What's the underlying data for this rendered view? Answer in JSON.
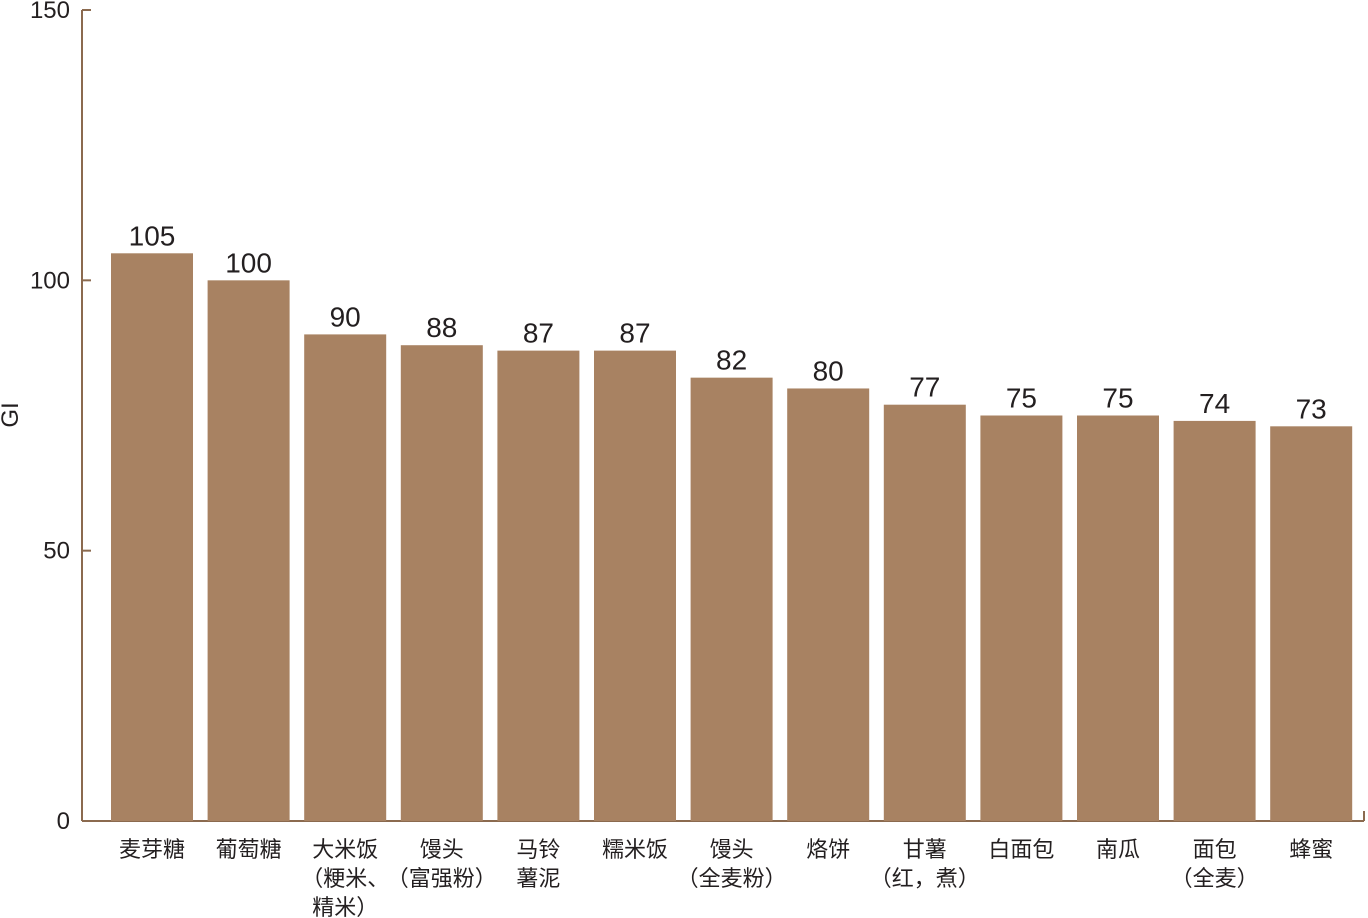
{
  "colors": {
    "bar": "#a88262",
    "axis": "#8b6a4f",
    "text": "#231f20"
  },
  "chart_data": {
    "type": "bar",
    "title": "",
    "xlabel": "",
    "ylabel": "GI",
    "ylim": [
      0,
      150
    ],
    "yticks": [
      0,
      50,
      100,
      150
    ],
    "grid": false,
    "legend": "none",
    "categories": [
      [
        "麦芽糖"
      ],
      [
        "葡萄糖"
      ],
      [
        "大米饭",
        "（粳米、",
        "精米）"
      ],
      [
        "馒头",
        "（富强粉）"
      ],
      [
        "马铃",
        "薯泥"
      ],
      [
        "糯米饭"
      ],
      [
        "馒头",
        "（全麦粉）"
      ],
      [
        "烙饼"
      ],
      [
        "甘薯",
        "（红，煮）"
      ],
      [
        "白面包"
      ],
      [
        "南瓜"
      ],
      [
        "面包",
        "（全麦）"
      ],
      [
        "蜂蜜"
      ]
    ],
    "values": [
      105,
      100,
      90,
      88,
      87,
      87,
      82,
      80,
      77,
      75,
      75,
      74,
      73
    ],
    "data_labels": [
      "105",
      "100",
      "90",
      "88",
      "87",
      "87",
      "82",
      "80",
      "77",
      "75",
      "75",
      "74",
      "73"
    ]
  }
}
